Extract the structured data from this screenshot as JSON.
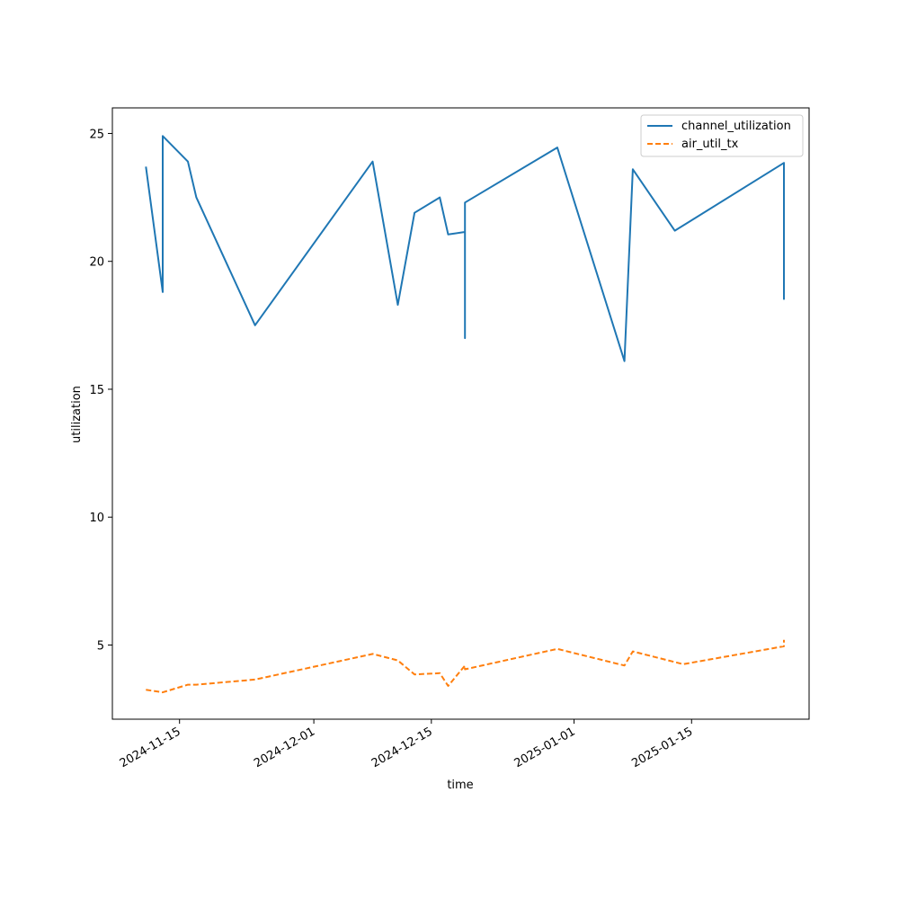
{
  "chart_data": {
    "type": "line",
    "title": "",
    "xlabel": "time",
    "ylabel": "utilization",
    "x_type": "date",
    "xlim": [
      "2024-11-07",
      "2025-01-29"
    ],
    "ylim": [
      2.1,
      26.0
    ],
    "x_ticks": [
      "2024-11-15",
      "2024-12-01",
      "2024-12-15",
      "2025-01-01",
      "2025-01-15"
    ],
    "y_ticks": [
      5,
      10,
      15,
      20,
      25
    ],
    "grid": false,
    "legend_position": "top-right",
    "series": [
      {
        "name": "channel_utilization",
        "color": "#1f77b4",
        "style": "solid",
        "points": [
          [
            "2024-11-11",
            23.7
          ],
          [
            "2024-11-13",
            18.8
          ],
          [
            "2024-11-13",
            24.9
          ],
          [
            "2024-11-16",
            23.9
          ],
          [
            "2024-11-17",
            22.5
          ],
          [
            "2024-11-24",
            17.5
          ],
          [
            "2024-12-08",
            23.9
          ],
          [
            "2024-12-11",
            18.3
          ],
          [
            "2024-12-13",
            21.9
          ],
          [
            "2024-12-16",
            22.5
          ],
          [
            "2024-12-17",
            21.05
          ],
          [
            "2024-12-19",
            21.15
          ],
          [
            "2024-12-19",
            17.0
          ],
          [
            "2024-12-19",
            22.3
          ],
          [
            "2024-12-30",
            24.45
          ],
          [
            "2025-01-07",
            16.1
          ],
          [
            "2025-01-08",
            23.6
          ],
          [
            "2025-01-13",
            21.2
          ],
          [
            "2025-01-26",
            23.85
          ],
          [
            "2025-01-26",
            18.5
          ]
        ]
      },
      {
        "name": "air_util_tx",
        "color": "#ff7f0e",
        "style": "dashed",
        "points": [
          [
            "2024-11-11",
            3.25
          ],
          [
            "2024-11-13",
            3.15
          ],
          [
            "2024-11-16",
            3.45
          ],
          [
            "2024-11-17",
            3.45
          ],
          [
            "2024-11-24",
            3.65
          ],
          [
            "2024-12-08",
            4.65
          ],
          [
            "2024-12-11",
            4.4
          ],
          [
            "2024-12-13",
            3.85
          ],
          [
            "2024-12-16",
            3.9
          ],
          [
            "2024-12-17",
            3.4
          ],
          [
            "2024-12-19",
            4.2
          ],
          [
            "2024-12-19",
            4.05
          ],
          [
            "2024-12-30",
            4.85
          ],
          [
            "2025-01-07",
            4.2
          ],
          [
            "2025-01-08",
            4.75
          ],
          [
            "2025-01-14",
            4.25
          ],
          [
            "2025-01-26",
            4.95
          ],
          [
            "2025-01-26",
            5.2
          ]
        ]
      }
    ]
  }
}
